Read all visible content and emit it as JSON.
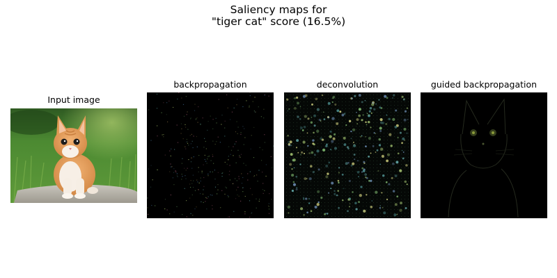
{
  "figure": {
    "title_line1": "Saliency maps for",
    "title_line2": "\"tiger cat\" score (16.5%)"
  },
  "panels": [
    {
      "title": "Input image",
      "content": "photo of an orange and white kitten sitting on a stone in grass"
    },
    {
      "title": "backpropagation",
      "content": "dark saliency map with sparse colored speckles"
    },
    {
      "title": "deconvolution",
      "content": "dark saliency map with grid-like pattern of bright colored dots"
    },
    {
      "title": "guided backpropagation",
      "content": "dark saliency map showing faint cat silhouette with glowing eyes"
    }
  ]
}
